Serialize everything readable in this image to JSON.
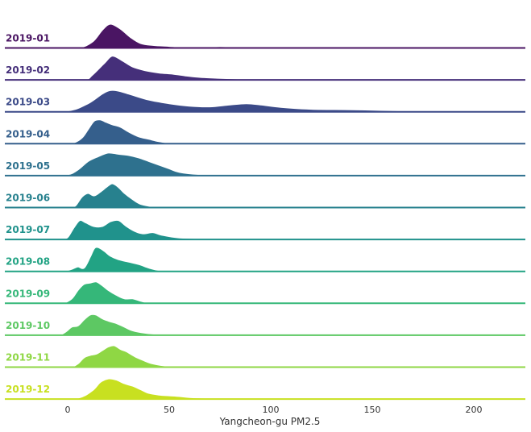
{
  "chart_data": {
    "type": "ridgeline",
    "title": "",
    "xlabel": "Yangcheon-gu PM2.5",
    "ylabel": "",
    "xlim": [
      -30,
      227
    ],
    "xticks": [
      0,
      50,
      100,
      150,
      200
    ],
    "grid": false,
    "legend": "none",
    "series": [
      {
        "name": "2019-01",
        "color": "#4a1563",
        "values": [
          [
            -10,
            0
          ],
          [
            5,
            0.02
          ],
          [
            12,
            0.25
          ],
          [
            17,
            0.75
          ],
          [
            21,
            1.0
          ],
          [
            26,
            0.8
          ],
          [
            31,
            0.45
          ],
          [
            36,
            0.2
          ],
          [
            42,
            0.12
          ],
          [
            50,
            0.08
          ],
          [
            60,
            0.04
          ],
          [
            75,
            0.07
          ],
          [
            85,
            0.04
          ],
          [
            100,
            0.02
          ],
          [
            130,
            0.01
          ],
          [
            170,
            0.005
          ],
          [
            195,
            0
          ]
        ]
      },
      {
        "name": "2019-02",
        "color": "#452f7a",
        "values": [
          [
            -8,
            0
          ],
          [
            8,
            0.02
          ],
          [
            12,
            0.2
          ],
          [
            18,
            0.7
          ],
          [
            22,
            1.0
          ],
          [
            27,
            0.8
          ],
          [
            32,
            0.55
          ],
          [
            38,
            0.4
          ],
          [
            45,
            0.3
          ],
          [
            52,
            0.25
          ],
          [
            58,
            0.18
          ],
          [
            65,
            0.12
          ],
          [
            75,
            0.08
          ],
          [
            85,
            0.05
          ],
          [
            100,
            0.02
          ],
          [
            110,
            0
          ]
        ]
      },
      {
        "name": "2019-03",
        "color": "#3b4a88",
        "values": [
          [
            -20,
            0
          ],
          [
            0,
            0.05
          ],
          [
            10,
            0.35
          ],
          [
            18,
            0.8
          ],
          [
            23,
            0.9
          ],
          [
            30,
            0.75
          ],
          [
            40,
            0.5
          ],
          [
            50,
            0.35
          ],
          [
            60,
            0.25
          ],
          [
            70,
            0.22
          ],
          [
            80,
            0.3
          ],
          [
            88,
            0.35
          ],
          [
            95,
            0.3
          ],
          [
            105,
            0.2
          ],
          [
            120,
            0.12
          ],
          [
            140,
            0.1
          ],
          [
            160,
            0.06
          ],
          [
            185,
            0.03
          ],
          [
            210,
            0
          ]
        ]
      },
      {
        "name": "2019-04",
        "color": "#355f8c",
        "values": [
          [
            -2,
            0
          ],
          [
            3,
            0.05
          ],
          [
            7,
            0.25
          ],
          [
            10,
            0.6
          ],
          [
            13,
            0.95
          ],
          [
            16,
            1.0
          ],
          [
            19,
            0.9
          ],
          [
            22,
            0.8
          ],
          [
            26,
            0.7
          ],
          [
            30,
            0.5
          ],
          [
            35,
            0.3
          ],
          [
            40,
            0.2
          ],
          [
            45,
            0.1
          ],
          [
            50,
            0.04
          ],
          [
            55,
            0.01
          ],
          [
            62,
            0
          ]
        ]
      },
      {
        "name": "2019-05",
        "color": "#2e718e",
        "values": [
          [
            -10,
            0
          ],
          [
            0,
            0.05
          ],
          [
            5,
            0.25
          ],
          [
            10,
            0.6
          ],
          [
            15,
            0.8
          ],
          [
            20,
            0.95
          ],
          [
            25,
            0.9
          ],
          [
            30,
            0.85
          ],
          [
            35,
            0.75
          ],
          [
            40,
            0.6
          ],
          [
            45,
            0.45
          ],
          [
            50,
            0.3
          ],
          [
            55,
            0.15
          ],
          [
            65,
            0.06
          ],
          [
            80,
            0.03
          ],
          [
            100,
            0.01
          ],
          [
            110,
            0
          ]
        ]
      },
      {
        "name": "2019-06",
        "color": "#27818e",
        "values": [
          [
            2,
            0
          ],
          [
            4,
            0.1
          ],
          [
            7,
            0.45
          ],
          [
            10,
            0.6
          ],
          [
            13,
            0.5
          ],
          [
            16,
            0.65
          ],
          [
            19,
            0.85
          ],
          [
            22,
            1.0
          ],
          [
            25,
            0.85
          ],
          [
            28,
            0.6
          ],
          [
            32,
            0.35
          ],
          [
            36,
            0.15
          ],
          [
            42,
            0.05
          ],
          [
            50,
            0.01
          ],
          [
            58,
            0
          ]
        ]
      },
      {
        "name": "2019-07",
        "color": "#20928c",
        "values": [
          [
            -3,
            0
          ],
          [
            0,
            0.1
          ],
          [
            3,
            0.5
          ],
          [
            6,
            0.8
          ],
          [
            9,
            0.7
          ],
          [
            13,
            0.55
          ],
          [
            17,
            0.55
          ],
          [
            21,
            0.75
          ],
          [
            25,
            0.8
          ],
          [
            29,
            0.55
          ],
          [
            33,
            0.35
          ],
          [
            37,
            0.25
          ],
          [
            42,
            0.3
          ],
          [
            46,
            0.2
          ],
          [
            55,
            0.08
          ],
          [
            70,
            0.04
          ],
          [
            85,
            0.01
          ],
          [
            90,
            0
          ]
        ]
      },
      {
        "name": "2019-08",
        "color": "#22a384",
        "values": [
          [
            -2,
            0
          ],
          [
            2,
            0.1
          ],
          [
            5,
            0.2
          ],
          [
            8,
            0.15
          ],
          [
            11,
            0.6
          ],
          [
            13,
            0.95
          ],
          [
            15,
            1.0
          ],
          [
            18,
            0.85
          ],
          [
            21,
            0.65
          ],
          [
            25,
            0.5
          ],
          [
            30,
            0.4
          ],
          [
            35,
            0.3
          ],
          [
            40,
            0.15
          ],
          [
            45,
            0.05
          ],
          [
            52,
            0.01
          ],
          [
            60,
            0
          ]
        ]
      },
      {
        "name": "2019-09",
        "color": "#35b779",
        "values": [
          [
            -2,
            0
          ],
          [
            2,
            0.2
          ],
          [
            5,
            0.55
          ],
          [
            8,
            0.8
          ],
          [
            11,
            0.85
          ],
          [
            14,
            0.9
          ],
          [
            17,
            0.75
          ],
          [
            20,
            0.55
          ],
          [
            24,
            0.35
          ],
          [
            28,
            0.2
          ],
          [
            32,
            0.2
          ],
          [
            36,
            0.1
          ],
          [
            40,
            0.02
          ],
          [
            45,
            0
          ]
        ]
      },
      {
        "name": "2019-10",
        "color": "#5dc863",
        "values": [
          [
            -4,
            0
          ],
          [
            -1,
            0.15
          ],
          [
            2,
            0.35
          ],
          [
            5,
            0.4
          ],
          [
            8,
            0.65
          ],
          [
            11,
            0.85
          ],
          [
            14,
            0.85
          ],
          [
            17,
            0.7
          ],
          [
            20,
            0.6
          ],
          [
            24,
            0.5
          ],
          [
            28,
            0.35
          ],
          [
            32,
            0.2
          ],
          [
            38,
            0.1
          ],
          [
            45,
            0.05
          ],
          [
            55,
            0.03
          ],
          [
            70,
            0.01
          ],
          [
            75,
            0
          ]
        ]
      },
      {
        "name": "2019-11",
        "color": "#8fd744",
        "values": [
          [
            2,
            0
          ],
          [
            5,
            0.15
          ],
          [
            8,
            0.4
          ],
          [
            11,
            0.5
          ],
          [
            14,
            0.55
          ],
          [
            17,
            0.7
          ],
          [
            20,
            0.85
          ],
          [
            23,
            0.9
          ],
          [
            26,
            0.75
          ],
          [
            29,
            0.65
          ],
          [
            33,
            0.45
          ],
          [
            37,
            0.3
          ],
          [
            42,
            0.15
          ],
          [
            50,
            0.05
          ],
          [
            60,
            0.02
          ],
          [
            65,
            0
          ]
        ]
      },
      {
        "name": "2019-12",
        "color": "#c8e020",
        "values": [
          [
            -8,
            0
          ],
          [
            5,
            0.05
          ],
          [
            12,
            0.35
          ],
          [
            16,
            0.7
          ],
          [
            20,
            0.85
          ],
          [
            24,
            0.8
          ],
          [
            28,
            0.65
          ],
          [
            32,
            0.55
          ],
          [
            36,
            0.4
          ],
          [
            40,
            0.25
          ],
          [
            45,
            0.18
          ],
          [
            50,
            0.15
          ],
          [
            55,
            0.12
          ],
          [
            60,
            0.08
          ],
          [
            70,
            0.05
          ],
          [
            85,
            0.03
          ],
          [
            110,
            0.02
          ],
          [
            140,
            0.01
          ],
          [
            150,
            0
          ]
        ]
      }
    ]
  }
}
